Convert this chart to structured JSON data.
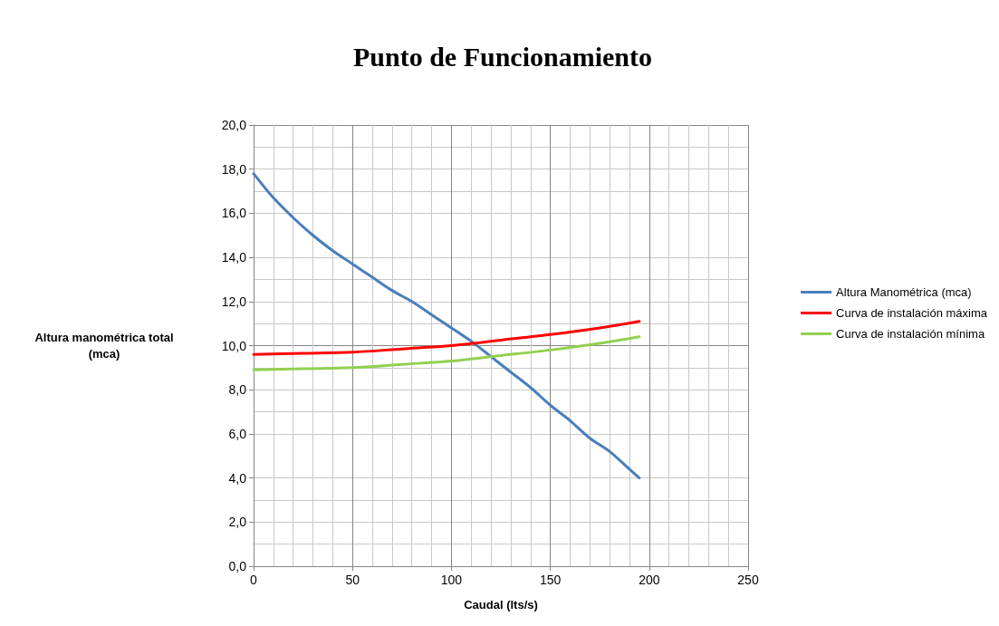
{
  "chart_data": {
    "type": "line",
    "title": "Punto de Funcionamiento",
    "xlabel": "Caudal (lts/s)",
    "ylabel": "Altura manométrica total (mca)",
    "series": [
      {
        "name": "Altura Manométrica (mca)",
        "color": "#4a7ebb",
        "x": [
          0,
          10,
          20,
          30,
          40,
          50,
          60,
          70,
          80,
          90,
          100,
          110,
          120,
          130,
          140,
          150,
          160,
          170,
          180,
          190,
          195
        ],
        "values": [
          17.8,
          16.7,
          15.8,
          15.0,
          14.3,
          13.7,
          13.1,
          12.5,
          12.0,
          11.4,
          10.8,
          10.2,
          9.5,
          8.8,
          8.1,
          7.3,
          6.6,
          5.8,
          5.2,
          4.4,
          4.0
        ]
      },
      {
        "name": "Curva de instalación máxima",
        "color": "#ff0000",
        "x": [
          0,
          25,
          50,
          75,
          100,
          125,
          150,
          175,
          195
        ],
        "values": [
          9.6,
          9.65,
          9.7,
          9.85,
          10.0,
          10.25,
          10.5,
          10.8,
          11.1
        ]
      },
      {
        "name": "Curva de instalación mínima",
        "color": "#92d050",
        "x": [
          0,
          25,
          50,
          75,
          100,
          125,
          150,
          175,
          195
        ],
        "values": [
          8.9,
          8.95,
          9.0,
          9.15,
          9.3,
          9.55,
          9.8,
          10.1,
          10.4
        ]
      }
    ],
    "xlim": [
      0,
      250
    ],
    "xticks": [
      0,
      50,
      100,
      150,
      200,
      250
    ],
    "ylim": [
      0,
      20
    ],
    "yticks": [
      {
        "value": 0,
        "label": "0,0"
      },
      {
        "value": 2,
        "label": "2,0"
      },
      {
        "value": 4,
        "label": "4,0"
      },
      {
        "value": 6,
        "label": "6,0"
      },
      {
        "value": 8,
        "label": "8,0"
      },
      {
        "value": 10,
        "label": "10,0"
      },
      {
        "value": 12,
        "label": "12,0"
      },
      {
        "value": 14,
        "label": "14,0"
      },
      {
        "value": 16,
        "label": "16,0"
      },
      {
        "value": 18,
        "label": "18,0"
      },
      {
        "value": 20,
        "label": "20,0"
      }
    ],
    "grid": true,
    "legend": "right",
    "marker": "none",
    "line_style": "solid"
  }
}
